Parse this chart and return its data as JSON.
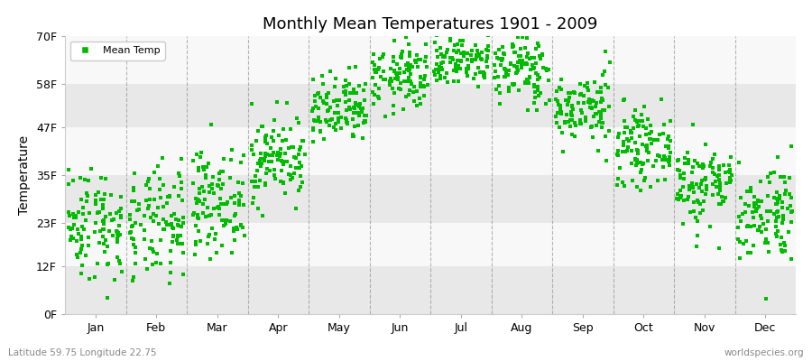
{
  "title": "Monthly Mean Temperatures 1901 - 2009",
  "ylabel": "Temperature",
  "xlabel_bottom_left": "Latitude 59.75 Longitude 22.75",
  "xlabel_bottom_right": "worldspecies.org",
  "yticks": [
    0,
    12,
    23,
    35,
    47,
    58,
    70
  ],
  "ytick_labels": [
    "0F",
    "12F",
    "23F",
    "35F",
    "47F",
    "58F",
    "70F"
  ],
  "months": [
    "Jan",
    "Feb",
    "Mar",
    "Apr",
    "May",
    "Jun",
    "Jul",
    "Aug",
    "Sep",
    "Oct",
    "Nov",
    "Dec"
  ],
  "month_means_C": [
    -5.0,
    -5.5,
    -2.0,
    4.0,
    10.5,
    15.5,
    18.0,
    16.5,
    11.0,
    5.5,
    0.5,
    -3.5
  ],
  "month_stds_C": [
    4.0,
    4.0,
    3.5,
    3.0,
    2.5,
    2.5,
    2.0,
    2.5,
    2.5,
    2.5,
    3.0,
    3.5
  ],
  "n_years": 109,
  "marker_color": "#00bb00",
  "marker_size": 2.5,
  "bg_color": "#ffffff",
  "plot_bg_color": "#ffffff",
  "band_colors": [
    "#e8e8e8",
    "#f8f8f8"
  ],
  "grid_color": "#888888",
  "legend_marker_color": "#00bb00",
  "seed": 42
}
